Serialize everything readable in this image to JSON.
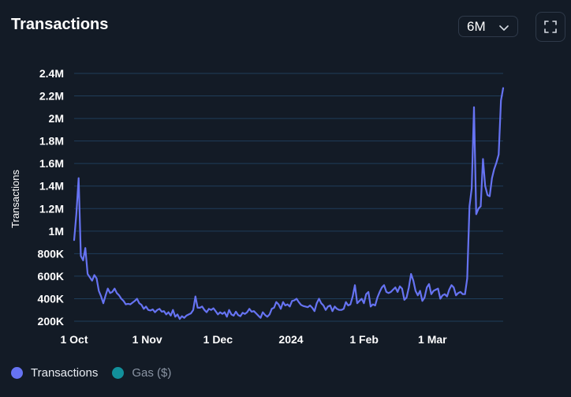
{
  "header": {
    "title": "Transactions",
    "range_value": "6M",
    "chevron_icon": "chevron-down-icon",
    "fullscreen_icon": "fullscreen-icon"
  },
  "colors": {
    "line": "#6673f2",
    "grid": "#1f3d5a",
    "gas": "#12909b"
  },
  "legend": [
    {
      "label": "Transactions",
      "color": "#6673f2",
      "active": true
    },
    {
      "label": "Gas ($)",
      "color": "#12909b",
      "active": false
    }
  ],
  "chart_data": {
    "type": "line",
    "title": "Transactions",
    "ylabel": "Transactions",
    "xlabel": "",
    "ylim": [
      200000,
      2400000
    ],
    "y_ticks": [
      {
        "value": 200000,
        "label": "200K"
      },
      {
        "value": 400000,
        "label": "400K"
      },
      {
        "value": 600000,
        "label": "600K"
      },
      {
        "value": 800000,
        "label": "800K"
      },
      {
        "value": 1000000,
        "label": "1M"
      },
      {
        "value": 1200000,
        "label": "1.2M"
      },
      {
        "value": 1400000,
        "label": "1.4M"
      },
      {
        "value": 1600000,
        "label": "1.6M"
      },
      {
        "value": 1800000,
        "label": "1.8M"
      },
      {
        "value": 2000000,
        "label": "2M"
      },
      {
        "value": 2200000,
        "label": "2.2M"
      },
      {
        "value": 2400000,
        "label": "2.4M"
      }
    ],
    "x_ticks": [
      {
        "date": "2023-10-01",
        "label": "1 Oct"
      },
      {
        "date": "2023-11-01",
        "label": "1 Nov"
      },
      {
        "date": "2023-12-01",
        "label": "1 Dec"
      },
      {
        "date": "2024-01-01",
        "label": "2024"
      },
      {
        "date": "2024-02-01",
        "label": "1 Feb"
      },
      {
        "date": "2024-03-01",
        "label": "1 Mar"
      }
    ],
    "x_start": "2023-10-01",
    "x_end": "2024-03-31",
    "grid": true,
    "legend_position": "bottom-left",
    "series": [
      {
        "name": "Transactions",
        "values": [
          920000,
          1150000,
          1470000,
          780000,
          740000,
          850000,
          620000,
          590000,
          560000,
          610000,
          580000,
          470000,
          420000,
          360000,
          430000,
          490000,
          450000,
          460000,
          490000,
          450000,
          430000,
          400000,
          380000,
          350000,
          355000,
          350000,
          365000,
          380000,
          400000,
          360000,
          345000,
          310000,
          330000,
          300000,
          295000,
          305000,
          280000,
          300000,
          310000,
          285000,
          290000,
          260000,
          280000,
          250000,
          300000,
          240000,
          260000,
          220000,
          245000,
          230000,
          250000,
          260000,
          270000,
          300000,
          420000,
          320000,
          320000,
          330000,
          300000,
          280000,
          310000,
          300000,
          315000,
          290000,
          260000,
          280000,
          265000,
          280000,
          240000,
          300000,
          260000,
          250000,
          285000,
          255000,
          245000,
          275000,
          265000,
          280000,
          310000,
          285000,
          290000,
          270000,
          250000,
          230000,
          280000,
          255000,
          240000,
          260000,
          310000,
          320000,
          370000,
          350000,
          310000,
          370000,
          340000,
          350000,
          330000,
          380000,
          385000,
          400000,
          370000,
          345000,
          335000,
          330000,
          325000,
          340000,
          320000,
          290000,
          360000,
          400000,
          360000,
          340000,
          300000,
          330000,
          340000,
          290000,
          330000,
          310000,
          300000,
          300000,
          310000,
          370000,
          340000,
          350000,
          420000,
          520000,
          360000,
          380000,
          400000,
          360000,
          440000,
          460000,
          330000,
          350000,
          340000,
          410000,
          460000,
          500000,
          520000,
          460000,
          450000,
          460000,
          480000,
          500000,
          460000,
          510000,
          490000,
          390000,
          410000,
          500000,
          620000,
          560000,
          470000,
          430000,
          470000,
          380000,
          410000,
          500000,
          530000,
          440000,
          470000,
          480000,
          490000,
          400000,
          430000,
          440000,
          420000,
          480000,
          520000,
          500000,
          430000,
          450000,
          460000,
          440000,
          440000,
          580000,
          1220000,
          1380000,
          2100000,
          1150000,
          1200000,
          1220000,
          1640000,
          1400000,
          1320000,
          1310000,
          1470000,
          1550000,
          1610000,
          1680000,
          2160000,
          2270000
        ]
      }
    ]
  }
}
